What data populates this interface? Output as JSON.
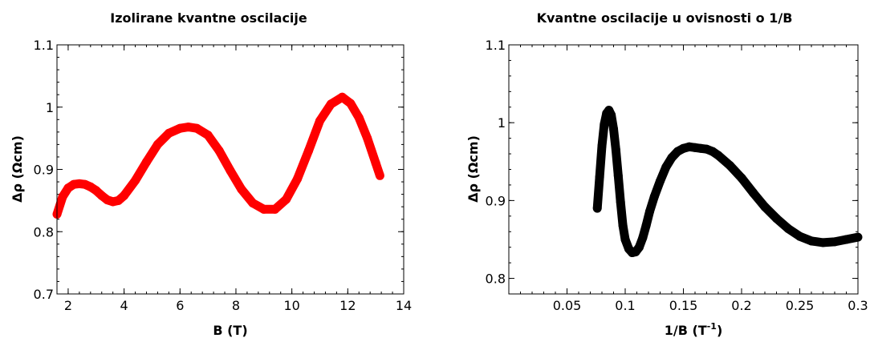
{
  "chart_data": [
    {
      "type": "line",
      "title": "Izolirane kvantne oscilacije",
      "xlabel": "B (T)",
      "ylabel": "Δρ (Ωcm)",
      "xlim": [
        1.6,
        14
      ],
      "ylim": [
        0.7,
        1.1
      ],
      "x_ticks": [
        "2",
        "4",
        "6",
        "8",
        "10",
        "12",
        "14"
      ],
      "y_ticks": [
        "0.7",
        "0.8",
        "0.9",
        "1",
        "1.1"
      ],
      "series_color": "#ff0000",
      "series": [
        {
          "x": [
            1.6,
            1.8,
            2.0,
            2.2,
            2.4,
            2.6,
            2.8,
            3.0,
            3.2,
            3.4,
            3.6,
            3.8,
            4.0,
            4.4,
            4.8,
            5.2,
            5.6,
            6.0,
            6.3,
            6.6,
            7.0,
            7.4,
            7.8,
            8.2,
            8.6,
            9.0,
            9.4,
            9.8,
            10.2,
            10.6,
            11.0,
            11.4,
            11.8,
            12.1,
            12.4,
            12.7,
            13.0,
            13.15
          ],
          "y": [
            0.828,
            0.856,
            0.87,
            0.876,
            0.877,
            0.876,
            0.872,
            0.866,
            0.858,
            0.851,
            0.848,
            0.85,
            0.858,
            0.882,
            0.912,
            0.94,
            0.958,
            0.966,
            0.968,
            0.966,
            0.955,
            0.93,
            0.898,
            0.868,
            0.846,
            0.836,
            0.836,
            0.852,
            0.885,
            0.93,
            0.978,
            1.005,
            1.016,
            1.006,
            0.983,
            0.95,
            0.91,
            0.89
          ]
        }
      ]
    },
    {
      "type": "line",
      "title": "Kvantne oscilacije u ovisnosti o 1/B",
      "xlabel": "1/B (T",
      "xlabel_sup": "-1",
      "xlabel_end": ")",
      "ylabel": "Δρ (Ωcm)",
      "xlim": [
        0,
        0.3
      ],
      "ylim": [
        0.78,
        1.1
      ],
      "x_ticks": [
        "0.05",
        "0.1",
        "0.15",
        "0.2",
        "0.25",
        "0.3"
      ],
      "y_ticks": [
        "0.8",
        "0.9",
        "1",
        "1.1"
      ],
      "series_color": "#000000",
      "series": [
        {
          "x": [
            0.076,
            0.078,
            0.08,
            0.082,
            0.084,
            0.086,
            0.088,
            0.09,
            0.092,
            0.094,
            0.096,
            0.098,
            0.1,
            0.103,
            0.106,
            0.109,
            0.112,
            0.115,
            0.118,
            0.121,
            0.125,
            0.13,
            0.135,
            0.14,
            0.145,
            0.15,
            0.155,
            0.16,
            0.165,
            0.17,
            0.175,
            0.18,
            0.19,
            0.2,
            0.21,
            0.22,
            0.23,
            0.24,
            0.25,
            0.26,
            0.27,
            0.28,
            0.29,
            0.3
          ],
          "y": [
            0.89,
            0.93,
            0.97,
            0.998,
            1.012,
            1.016,
            1.01,
            0.992,
            0.965,
            0.932,
            0.898,
            0.868,
            0.85,
            0.838,
            0.833,
            0.834,
            0.84,
            0.852,
            0.868,
            0.886,
            0.905,
            0.925,
            0.943,
            0.955,
            0.963,
            0.967,
            0.969,
            0.968,
            0.967,
            0.966,
            0.963,
            0.958,
            0.945,
            0.929,
            0.91,
            0.892,
            0.877,
            0.864,
            0.854,
            0.848,
            0.846,
            0.847,
            0.85,
            0.853
          ]
        }
      ]
    }
  ]
}
